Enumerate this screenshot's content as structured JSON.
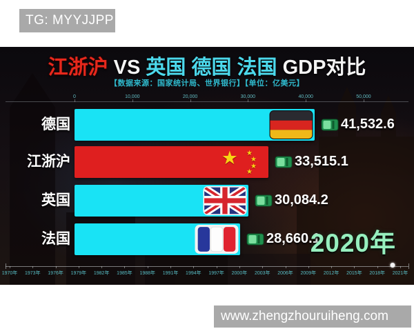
{
  "watermarks": {
    "top": "TG: MYYJJPP",
    "bottom": "www.zhengzhouruiheng.com"
  },
  "title": {
    "region": "江浙沪",
    "vs": " VS ",
    "competitors": "英国 德国 法国",
    "suffix": " GDP对比"
  },
  "subtitle": "【数据来源：国家统计局、世界银行】【单位：亿美元】",
  "current_year": "2020年",
  "colors": {
    "bar_cyan": "#19e3f5",
    "bar_red": "#df1f1f",
    "title_red": "#e6281c",
    "title_cyan": "#4cd9ec",
    "subtitle_teal": "#2fb9cc",
    "year_green": "#97efbe",
    "watermark_gray": "#a9a9a9"
  },
  "chart_data": {
    "type": "bar",
    "orientation": "horizontal",
    "title": "江浙沪 VS 英国 德国 法国 GDP对比",
    "source": "国家统计局、世界银行",
    "unit": "亿美元",
    "categories": [
      "德国",
      "江浙沪",
      "英国",
      "法国"
    ],
    "values": [
      41532.6,
      33515.1,
      30084.2,
      28660.1
    ],
    "value_labels": [
      "41,532.6",
      "33,515.1",
      "30,084.2",
      "28,660.1"
    ],
    "flags": [
      "germany",
      "china",
      "uk",
      "france"
    ],
    "bar_colors": [
      "#19e3f5",
      "#df1f1f",
      "#19e3f5",
      "#19e3f5"
    ],
    "xlim": [
      0,
      45000
    ],
    "axis_ticks": [
      {
        "label": "0",
        "value": 0
      },
      {
        "label": "10,000",
        "value": 10000
      },
      {
        "label": "20,000",
        "value": 20000
      },
      {
        "label": "30,000",
        "value": 30000
      },
      {
        "label": "40,000",
        "value": 40000
      },
      {
        "label": "50,000",
        "value": 50000
      }
    ],
    "timeline": {
      "years": [
        "1970年",
        "1973年",
        "1976年",
        "1979年",
        "1982年",
        "1985年",
        "1988年",
        "1991年",
        "1994年",
        "1997年",
        "2000年",
        "2003年",
        "2006年",
        "2009年",
        "2012年",
        "2015年",
        "2018年",
        "2021年"
      ],
      "start_year": 1970,
      "end_year": 2021,
      "marker_year": 2020
    }
  }
}
